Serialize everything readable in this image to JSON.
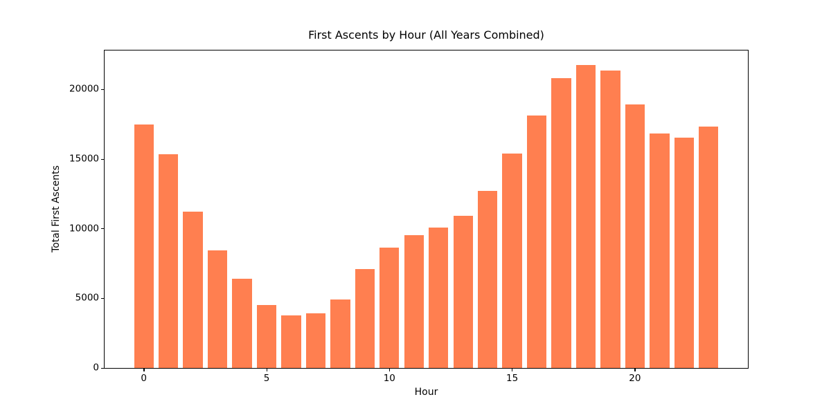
{
  "figure": {
    "background_color": "#ffffff",
    "text_color": "#000000",
    "axis_color": "#000000"
  },
  "chart_data": {
    "type": "bar",
    "title": "First Ascents by Hour (All Years Combined)",
    "xlabel": "Hour",
    "ylabel": "Total First Ascents",
    "categories": [
      0,
      1,
      2,
      3,
      4,
      5,
      6,
      7,
      8,
      9,
      10,
      11,
      12,
      13,
      14,
      15,
      16,
      17,
      18,
      19,
      20,
      21,
      22,
      23
    ],
    "values": [
      17470,
      15330,
      11250,
      8470,
      6420,
      4510,
      3800,
      3910,
      4940,
      7110,
      8630,
      9520,
      10070,
      10910,
      12720,
      15400,
      18130,
      20790,
      21740,
      21340,
      18910,
      16840,
      16540,
      17350
    ],
    "bar_color": "#FF7F50",
    "bar_width": 0.8,
    "xticks": [
      0,
      5,
      10,
      15,
      20
    ],
    "yticks": [
      0,
      5000,
      10000,
      15000,
      20000
    ],
    "xlim": [
      -1.6,
      24.6
    ],
    "ylim": [
      0,
      22800
    ],
    "grid": false,
    "legend": null
  }
}
